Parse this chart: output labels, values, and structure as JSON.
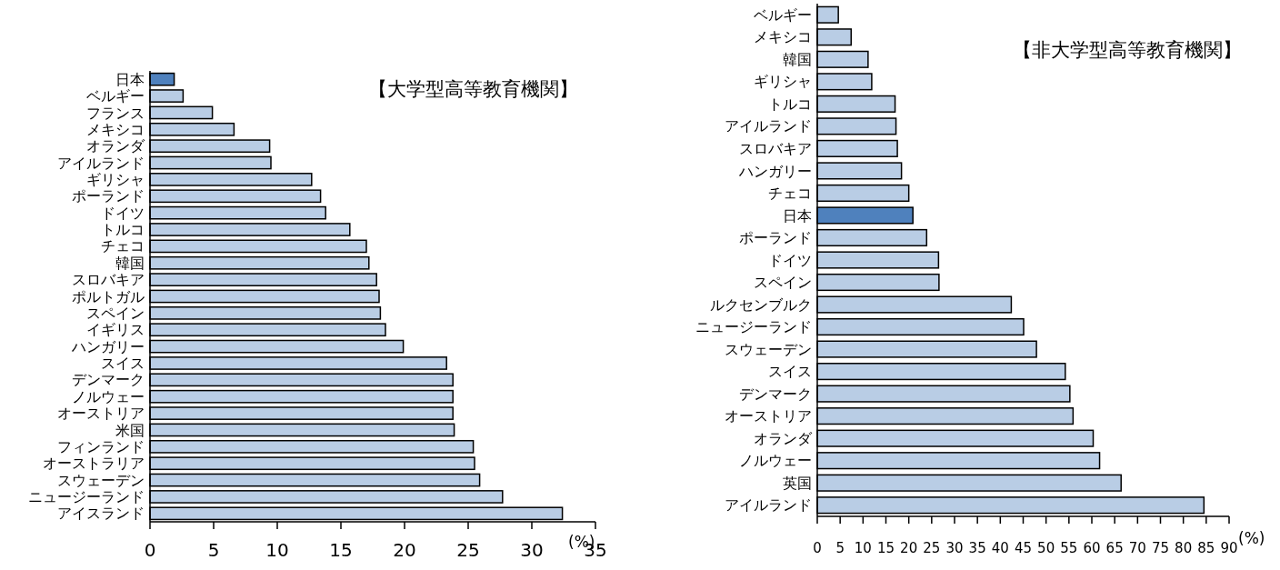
{
  "chart_data": [
    {
      "type": "bar",
      "orientation": "horizontal",
      "title": "【大学型高等教育機関】",
      "xlabel": "(%)",
      "categories": [
        "日本",
        "ベルギー",
        "フランス",
        "メキシコ",
        "オランダ",
        "アイルランド",
        "ギリシャ",
        "ポーランド",
        "ドイツ",
        "トルコ",
        "チェコ",
        "韓国",
        "スロバキア",
        "ポルトガル",
        "スペイン",
        "イギリス",
        "ハンガリー",
        "スイス",
        "デンマーク",
        "ノルウェー",
        "オーストリア",
        "米国",
        "フィンランド",
        "オーストラリア",
        "スウェーデン",
        "ニュージーランド",
        "アイスランド"
      ],
      "values": [
        1.9,
        2.6,
        4.9,
        6.6,
        9.4,
        9.5,
        12.7,
        13.4,
        13.8,
        15.7,
        17.0,
        17.2,
        17.8,
        18.0,
        18.1,
        18.5,
        19.9,
        23.3,
        23.8,
        23.8,
        23.8,
        23.9,
        25.4,
        25.5,
        25.9,
        27.7,
        32.4
      ],
      "colors": [
        "#4f81bd",
        "#b9cde5",
        "#b9cde5",
        "#b9cde5",
        "#b9cde5",
        "#b9cde5",
        "#b9cde5",
        "#b9cde5",
        "#b9cde5",
        "#b9cde5",
        "#b9cde5",
        "#b9cde5",
        "#b9cde5",
        "#b9cde5",
        "#b9cde5",
        "#b9cde5",
        "#b9cde5",
        "#b9cde5",
        "#b9cde5",
        "#b9cde5",
        "#b9cde5",
        "#b9cde5",
        "#b9cde5",
        "#b9cde5",
        "#b9cde5",
        "#b9cde5",
        "#b9cde5"
      ],
      "xlim": [
        0,
        35
      ],
      "xticks": [
        0,
        5,
        10,
        15,
        20,
        25,
        30,
        35
      ],
      "grid": false
    },
    {
      "type": "bar",
      "orientation": "horizontal",
      "title": "【非大学型高等教育機関】",
      "xlabel": "(%)",
      "categories": [
        "ベルギー",
        "メキシコ",
        "韓国",
        "ギリシャ",
        "トルコ",
        "アイルランド",
        "スロバキア",
        "ハンガリー",
        "チェコ",
        "日本",
        "ポーランド",
        "ドイツ",
        "スペイン",
        "ルクセンブルク",
        "ニュージーランド",
        "スウェーデン",
        "スイス",
        "デンマーク",
        "オーストリア",
        "オランダ",
        "ノルウェー",
        "英国",
        "アイルランド"
      ],
      "values": [
        4.6,
        7.4,
        11.1,
        11.9,
        17.0,
        17.2,
        17.5,
        18.4,
        20.0,
        20.9,
        23.9,
        26.5,
        26.6,
        42.4,
        45.1,
        47.9,
        54.2,
        55.2,
        55.9,
        60.3,
        61.7,
        66.4,
        84.5
      ],
      "colors": [
        "#b9cde5",
        "#b9cde5",
        "#b9cde5",
        "#b9cde5",
        "#b9cde5",
        "#b9cde5",
        "#b9cde5",
        "#b9cde5",
        "#b9cde5",
        "#4f81bd",
        "#b9cde5",
        "#b9cde5",
        "#b9cde5",
        "#b9cde5",
        "#b9cde5",
        "#b9cde5",
        "#b9cde5",
        "#b9cde5",
        "#b9cde5",
        "#b9cde5",
        "#b9cde5",
        "#b9cde5",
        "#b9cde5"
      ],
      "xlim": [
        0,
        90
      ],
      "xticks": [
        0,
        5,
        10,
        15,
        20,
        25,
        30,
        35,
        40,
        45,
        50,
        55,
        60,
        65,
        70,
        75,
        80,
        85,
        90
      ],
      "grid": false
    }
  ]
}
